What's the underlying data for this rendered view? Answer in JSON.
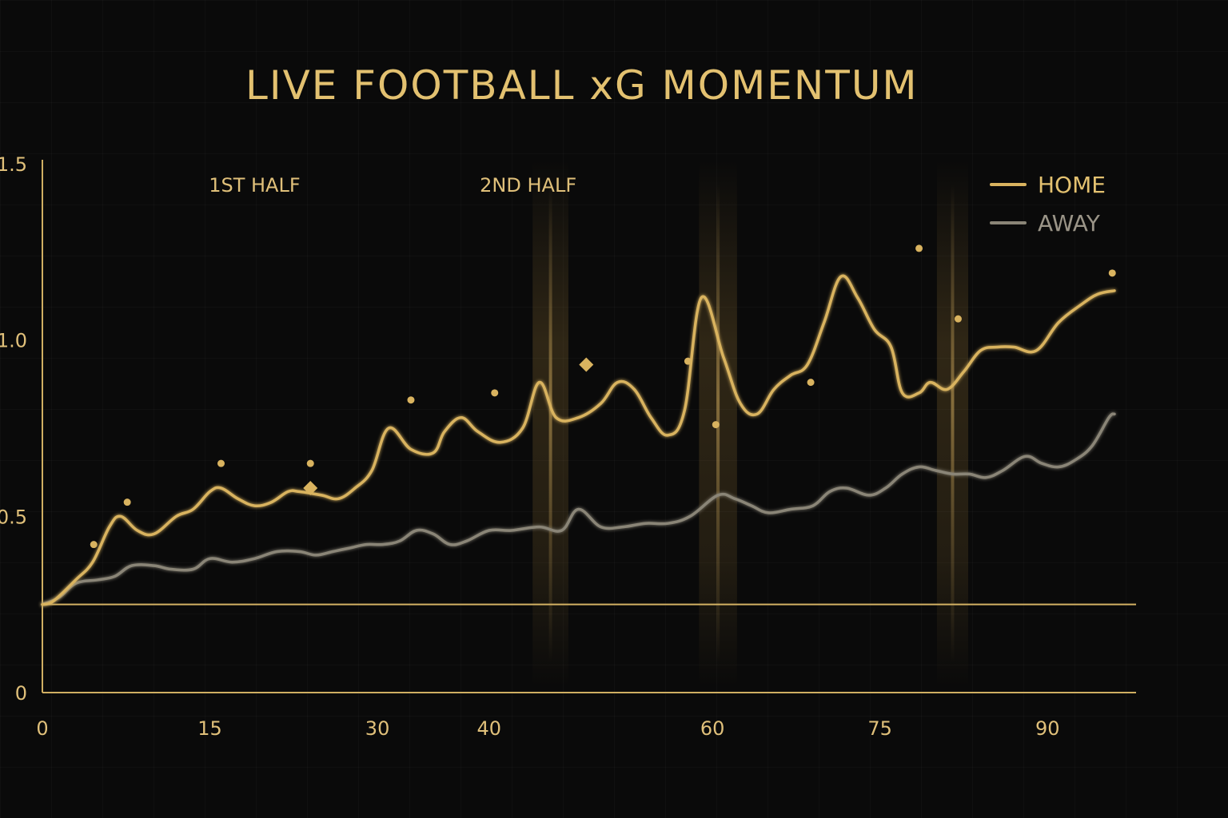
{
  "chart_data": {
    "type": "line",
    "title": "LIVE FOOTBALL xG MOMENTUM",
    "xlabel": "",
    "ylabel": "",
    "xlim": [
      0,
      97
    ],
    "ylim": [
      0,
      1.5
    ],
    "x_ticks": [
      0,
      15,
      30,
      40,
      60,
      75,
      90
    ],
    "x_tick_labels": [
      "0",
      "15",
      "30",
      "40",
      "60",
      "75",
      "90"
    ],
    "y_ticks": [
      0,
      0.5,
      1.0,
      1.5
    ],
    "y_tick_labels": [
      "0",
      "0.5",
      "1.0",
      "1.5"
    ],
    "baseline": 0.25,
    "half_labels": [
      {
        "text": "1ST HALF",
        "x": 19
      },
      {
        "text": "2ND HALF",
        "x": 43.5
      }
    ],
    "highlights": [
      {
        "minute": 45.5,
        "width": 3.2
      },
      {
        "minute": 60.5,
        "width": 3.4
      },
      {
        "minute": 81.5,
        "width": 2.8
      }
    ],
    "legend_position": "top-right",
    "series": [
      {
        "name": "HOME",
        "color": "#d9b35f",
        "x": [
          0,
          1,
          3,
          4.5,
          6,
          7,
          8.5,
          10,
          12,
          13.5,
          15,
          16,
          17.5,
          19,
          20.5,
          22,
          23,
          25,
          26.5,
          28,
          29.5,
          31,
          33,
          35,
          36,
          37.5,
          39,
          41,
          43,
          44.5,
          46,
          48,
          50,
          51.5,
          53,
          54.5,
          56,
          57.5,
          59,
          61,
          62.5,
          64,
          65.5,
          67,
          68.5,
          70,
          71.5,
          73,
          74.5,
          76,
          77,
          78.5,
          79.5,
          81,
          82.5,
          84,
          85.5,
          87,
          89,
          91,
          93,
          94.5,
          96
        ],
        "values": [
          0.25,
          0.26,
          0.32,
          0.37,
          0.47,
          0.5,
          0.46,
          0.45,
          0.5,
          0.52,
          0.57,
          0.58,
          0.55,
          0.53,
          0.54,
          0.57,
          0.57,
          0.56,
          0.55,
          0.58,
          0.63,
          0.75,
          0.69,
          0.68,
          0.74,
          0.78,
          0.74,
          0.71,
          0.75,
          0.88,
          0.78,
          0.78,
          0.82,
          0.88,
          0.86,
          0.78,
          0.73,
          0.8,
          1.12,
          0.95,
          0.82,
          0.79,
          0.86,
          0.9,
          0.93,
          1.05,
          1.18,
          1.12,
          1.03,
          0.98,
          0.85,
          0.85,
          0.88,
          0.86,
          0.91,
          0.97,
          0.98,
          0.98,
          0.97,
          1.05,
          1.1,
          1.13,
          1.14
        ]
      },
      {
        "name": "AWAY",
        "color": "#8a8577",
        "x": [
          0,
          1.5,
          3,
          5,
          6.5,
          8,
          10,
          11.5,
          13.5,
          15,
          17,
          19,
          21,
          23,
          24.5,
          26,
          27.5,
          29,
          30.5,
          32,
          33.5,
          35,
          36.5,
          38,
          40,
          42,
          44.5,
          46.5,
          48,
          50,
          52,
          54,
          56,
          58,
          60.5,
          62,
          63.5,
          65,
          67,
          69,
          70.5,
          72,
          74,
          75.5,
          77,
          78.5,
          80,
          81.5,
          83,
          84.5,
          86,
          88,
          89.5,
          91,
          92.5,
          94,
          95.5,
          96
        ],
        "values": [
          0.25,
          0.27,
          0.31,
          0.32,
          0.33,
          0.36,
          0.36,
          0.35,
          0.35,
          0.38,
          0.37,
          0.38,
          0.4,
          0.4,
          0.39,
          0.4,
          0.41,
          0.42,
          0.42,
          0.43,
          0.46,
          0.45,
          0.42,
          0.43,
          0.46,
          0.46,
          0.47,
          0.46,
          0.52,
          0.47,
          0.47,
          0.48,
          0.48,
          0.5,
          0.56,
          0.55,
          0.53,
          0.51,
          0.52,
          0.53,
          0.57,
          0.58,
          0.56,
          0.58,
          0.62,
          0.64,
          0.63,
          0.62,
          0.62,
          0.61,
          0.63,
          0.67,
          0.65,
          0.64,
          0.66,
          0.7,
          0.78,
          0.79
        ]
      }
    ],
    "markers": [
      {
        "minute": 4.6,
        "value": 0.42,
        "shape": "dot"
      },
      {
        "minute": 7.6,
        "value": 0.54,
        "shape": "dot"
      },
      {
        "minute": 16.0,
        "value": 0.65,
        "shape": "dot"
      },
      {
        "minute": 24.0,
        "value": 0.58,
        "shape": "diamond"
      },
      {
        "minute": 24.0,
        "value": 0.65,
        "shape": "dot"
      },
      {
        "minute": 33.0,
        "value": 0.83,
        "shape": "dot"
      },
      {
        "minute": 40.5,
        "value": 0.85,
        "shape": "dot"
      },
      {
        "minute": 48.7,
        "value": 0.93,
        "shape": "diamond"
      },
      {
        "minute": 57.8,
        "value": 0.94,
        "shape": "dot"
      },
      {
        "minute": 60.3,
        "value": 0.76,
        "shape": "dot"
      },
      {
        "minute": 68.8,
        "value": 0.88,
        "shape": "dot"
      },
      {
        "minute": 78.5,
        "value": 1.26,
        "shape": "dot"
      },
      {
        "minute": 82.0,
        "value": 1.06,
        "shape": "dot"
      },
      {
        "minute": 95.8,
        "value": 1.19,
        "shape": "dot"
      }
    ]
  }
}
